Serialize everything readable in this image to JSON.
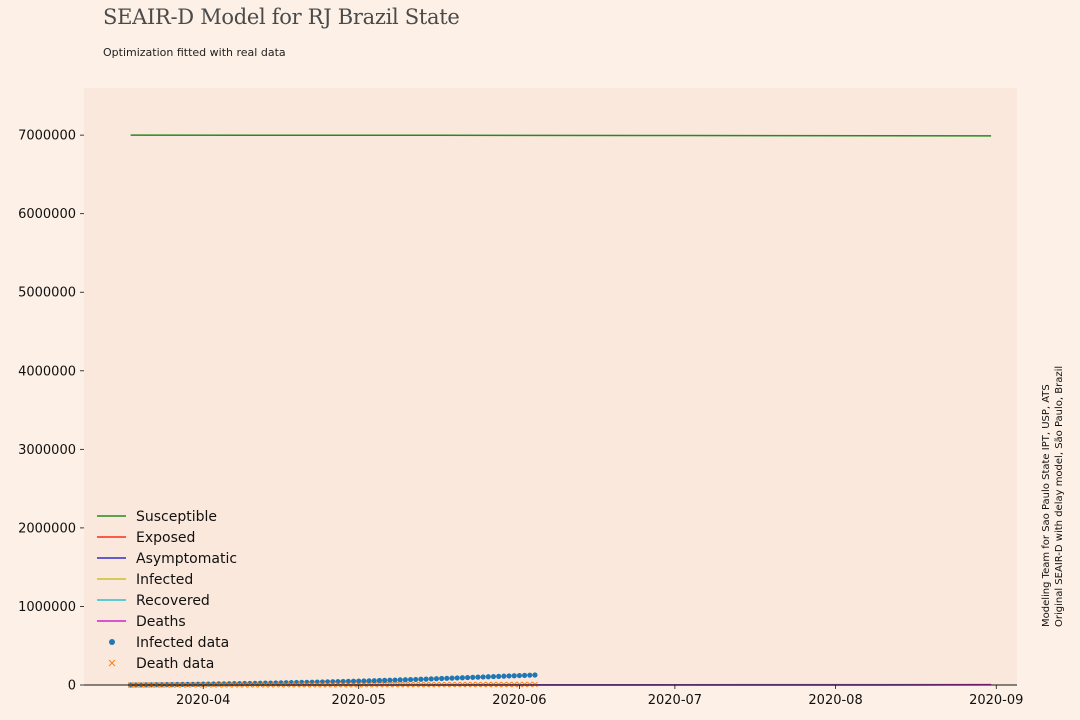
{
  "chart_data": {
    "type": "line",
    "title": "SEAIR-D Model for RJ Brazil State",
    "subtitle": "Optimization fitted with real data",
    "xlabel": "",
    "ylabel": "",
    "x_range": [
      "2020-03-09",
      "2020-09-05"
    ],
    "ylim": [
      0,
      7600000
    ],
    "x_ticks": [
      {
        "date": "2020-04-01",
        "label": "2020-04"
      },
      {
        "date": "2020-05-01",
        "label": "2020-05"
      },
      {
        "date": "2020-06-01",
        "label": "2020-06"
      },
      {
        "date": "2020-07-01",
        "label": "2020-07"
      },
      {
        "date": "2020-08-01",
        "label": "2020-08"
      },
      {
        "date": "2020-09-01",
        "label": "2020-09"
      }
    ],
    "y_ticks": [
      {
        "value": 0,
        "label": "0"
      },
      {
        "value": 1000000,
        "label": "1000000"
      },
      {
        "value": 2000000,
        "label": "2000000"
      },
      {
        "value": 3000000,
        "label": "3000000"
      },
      {
        "value": 4000000,
        "label": "4000000"
      },
      {
        "value": 5000000,
        "label": "5000000"
      },
      {
        "value": 6000000,
        "label": "6000000"
      },
      {
        "value": 7000000,
        "label": "7000000"
      }
    ],
    "grid": false,
    "legend_position": "lower-left",
    "series": [
      {
        "name": "Susceptible",
        "kind": "line",
        "color": "#228b22",
        "points": [
          [
            "2020-03-18",
            7000000
          ],
          [
            "2020-05-15",
            6998000
          ],
          [
            "2020-07-01",
            6995000
          ],
          [
            "2020-08-31",
            6990000
          ]
        ]
      },
      {
        "name": "Exposed",
        "kind": "line",
        "color": "#ff2a1a",
        "points": [
          [
            "2020-03-18",
            0
          ],
          [
            "2020-05-15",
            1500
          ],
          [
            "2020-07-01",
            2500
          ],
          [
            "2020-08-31",
            3000
          ]
        ]
      },
      {
        "name": "Asymptomatic",
        "kind": "line",
        "color": "#2e2ecc",
        "points": [
          [
            "2020-03-18",
            0
          ],
          [
            "2020-05-15",
            1000
          ],
          [
            "2020-07-01",
            2000
          ],
          [
            "2020-08-31",
            2500
          ]
        ]
      },
      {
        "name": "Infected",
        "kind": "line",
        "color": "#c9c12a",
        "points": [
          [
            "2020-03-18",
            0
          ],
          [
            "2020-05-15",
            800
          ],
          [
            "2020-07-01",
            1500
          ],
          [
            "2020-08-31",
            2000
          ]
        ]
      },
      {
        "name": "Recovered",
        "kind": "line",
        "color": "#22c4d4",
        "points": [
          [
            "2020-03-18",
            0
          ],
          [
            "2020-05-15",
            2000
          ],
          [
            "2020-07-01",
            4000
          ],
          [
            "2020-08-31",
            6000
          ]
        ]
      },
      {
        "name": "Deaths",
        "kind": "line",
        "color": "#cc22cc",
        "points": [
          [
            "2020-03-18",
            0
          ],
          [
            "2020-05-15",
            500
          ],
          [
            "2020-07-01",
            1500
          ],
          [
            "2020-08-31",
            2500
          ]
        ]
      },
      {
        "name": "Infected data",
        "kind": "dots",
        "color": "#1f77b4",
        "x_start": "2020-03-18",
        "x_end": "2020-06-04",
        "values": [
          0,
          500,
          1000,
          1500,
          2000,
          3000,
          3500,
          4500,
          5000,
          6500,
          7500,
          8500,
          9000,
          10000,
          11000,
          12000,
          13000,
          14000,
          15000,
          16000,
          17000,
          18000,
          19000,
          20000,
          21000,
          22000,
          23500,
          25000,
          26000,
          27500,
          29000,
          30000,
          31500,
          33000,
          34500,
          36000,
          37500,
          39000,
          40500,
          42000,
          43500,
          45000,
          46500,
          48000,
          49500,
          51000,
          53000,
          55000,
          57000,
          59000,
          61000,
          63000,
          65000,
          67000,
          69000,
          71000,
          73000,
          75000,
          77500,
          80000,
          82500,
          85000,
          87500,
          90000,
          92500,
          95000,
          97500,
          100000,
          102500,
          105000,
          107500,
          110000,
          112500,
          115000,
          117500,
          120000,
          122500,
          125000,
          127500
        ]
      },
      {
        "name": "Death data",
        "kind": "crosses",
        "color": "#ff7f0e",
        "x_start": "2020-03-18",
        "x_end": "2020-06-04",
        "values": [
          0,
          20,
          50,
          100,
          150,
          200,
          250,
          300,
          350,
          400,
          450,
          500,
          600,
          700,
          800,
          900,
          1000,
          1100,
          1200,
          1300,
          1400,
          1500,
          1600,
          1700,
          1800,
          1900,
          2000,
          2100,
          2200,
          2300,
          2400,
          2500,
          2600,
          2700,
          2800,
          2900,
          3000,
          3100,
          3200,
          3300,
          3400,
          3500,
          3600,
          3700,
          3800,
          3900,
          4000,
          4100,
          4200,
          4300,
          4400,
          4500,
          4600,
          4700,
          4800,
          4900,
          5000,
          5100,
          5200,
          5300,
          5400,
          5500,
          5600,
          5700,
          5800,
          5900,
          6000,
          6100,
          6200,
          6300,
          6400,
          6500,
          6600,
          6700,
          6800,
          6900,
          7000,
          7100,
          7200
        ]
      }
    ]
  },
  "side_note": {
    "line1": "Modeling Team for Sao Paulo State IPT, USP, ATS",
    "line2": "Original SEAIR-D with delay model, São Paulo, Brazil"
  },
  "colors": {
    "page_background": "#fdf0e6",
    "plot_background": "#fae8dc"
  }
}
